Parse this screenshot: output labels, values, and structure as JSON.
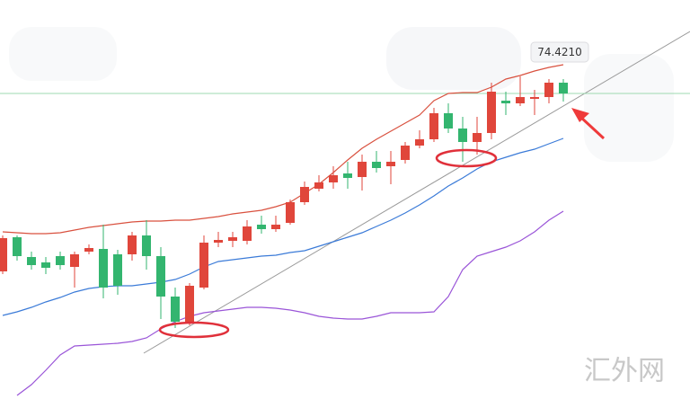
{
  "chart_data": {
    "type": "candlestick",
    "categories": [
      null,
      null,
      null,
      null,
      null,
      null,
      null,
      null,
      null,
      null,
      null,
      null,
      null,
      null,
      null,
      null,
      null,
      null,
      null,
      null,
      null,
      null,
      null,
      null,
      null,
      null,
      null,
      null,
      null,
      null,
      null,
      null,
      null,
      null,
      null,
      null,
      null,
      null,
      null,
      null
    ],
    "open": [
      64.52,
      66.42,
      65.32,
      65.02,
      65.37,
      64.77,
      65.62,
      65.77,
      65.47,
      65.47,
      66.52,
      65.37,
      63.12,
      61.72,
      63.62,
      66.12,
      66.22,
      66.22,
      67.12,
      66.87,
      67.22,
      68.37,
      69.12,
      69.47,
      69.97,
      69.77,
      70.62,
      70.37,
      70.72,
      71.52,
      71.87,
      73.32,
      72.47,
      71.72,
      72.22,
      74.02,
      73.87,
      74.12,
      74.22,
      75.02
    ],
    "high": [
      66.52,
      66.52,
      65.62,
      65.32,
      65.62,
      65.62,
      66.02,
      67.12,
      65.72,
      66.72,
      67.37,
      65.87,
      63.62,
      63.87,
      66.52,
      66.72,
      66.72,
      67.37,
      67.62,
      67.62,
      68.52,
      69.52,
      69.87,
      70.37,
      70.62,
      71.02,
      71.22,
      71.22,
      71.72,
      72.37,
      73.62,
      73.87,
      73.12,
      73.12,
      75.02,
      74.52,
      75.37,
      74.62,
      75.22,
      75.22
    ],
    "low": [
      64.37,
      65.12,
      64.62,
      64.37,
      64.62,
      63.62,
      65.47,
      63.02,
      63.22,
      65.12,
      64.62,
      61.87,
      61.37,
      61.52,
      63.52,
      65.87,
      65.87,
      66.02,
      66.62,
      66.72,
      67.12,
      68.22,
      68.97,
      69.12,
      69.12,
      69.02,
      70.02,
      69.37,
      70.52,
      71.37,
      71.72,
      72.22,
      70.62,
      71.02,
      71.87,
      73.22,
      73.72,
      73.22,
      73.87,
      73.97
    ],
    "close": [
      66.37,
      65.37,
      64.87,
      64.72,
      64.87,
      65.47,
      65.82,
      63.62,
      63.72,
      66.52,
      65.37,
      63.12,
      61.72,
      63.72,
      66.12,
      66.27,
      66.42,
      67.02,
      66.87,
      67.12,
      68.37,
      69.22,
      69.47,
      69.87,
      69.72,
      70.62,
      70.27,
      70.62,
      71.52,
      71.87,
      73.32,
      72.47,
      71.72,
      72.22,
      74.52,
      73.87,
      74.22,
      74.22,
      75.02,
      74.42
    ],
    "up_color": "#e0463b",
    "down_color": "#33b56f",
    "lines": [
      {
        "color": "#d9513f",
        "values": [
          66.72,
          66.67,
          66.62,
          66.62,
          66.67,
          66.82,
          66.97,
          67.07,
          67.17,
          67.27,
          67.32,
          67.32,
          67.37,
          67.37,
          67.47,
          67.57,
          67.72,
          67.82,
          67.92,
          68.12,
          68.37,
          68.87,
          69.37,
          70.02,
          70.72,
          71.37,
          71.87,
          72.32,
          72.77,
          73.22,
          74.02,
          74.42,
          74.47,
          74.47,
          74.77,
          75.22,
          75.42,
          75.67,
          75.87,
          76.02
        ]
      },
      {
        "color": "#3b7bd8",
        "values": [
          62.07,
          62.27,
          62.52,
          62.82,
          63.07,
          63.37,
          63.57,
          63.67,
          63.72,
          63.72,
          63.82,
          63.92,
          64.07,
          64.37,
          64.77,
          65.07,
          65.17,
          65.27,
          65.37,
          65.42,
          65.57,
          65.67,
          65.92,
          66.17,
          66.42,
          66.67,
          67.02,
          67.37,
          67.77,
          68.22,
          68.72,
          69.27,
          69.72,
          70.22,
          70.62,
          70.87,
          71.12,
          71.32,
          71.62,
          71.92
        ]
      },
      {
        "color": "#9a55d8",
        "values": [
          null,
          57.62,
          58.22,
          59.02,
          59.87,
          60.37,
          60.42,
          60.47,
          60.52,
          60.62,
          60.82,
          61.32,
          61.72,
          62.02,
          62.22,
          62.32,
          62.42,
          62.52,
          62.52,
          62.47,
          62.37,
          62.22,
          62.02,
          61.92,
          61.87,
          61.87,
          62.02,
          62.22,
          62.22,
          62.22,
          62.27,
          63.12,
          64.62,
          65.37,
          65.62,
          65.87,
          66.22,
          66.72,
          67.37,
          67.87
        ]
      }
    ],
    "ylim": [
      57.42,
      79.62
    ],
    "last_price": {
      "value": 74.421,
      "label": "74.4210"
    },
    "watermark": "汇外网"
  }
}
